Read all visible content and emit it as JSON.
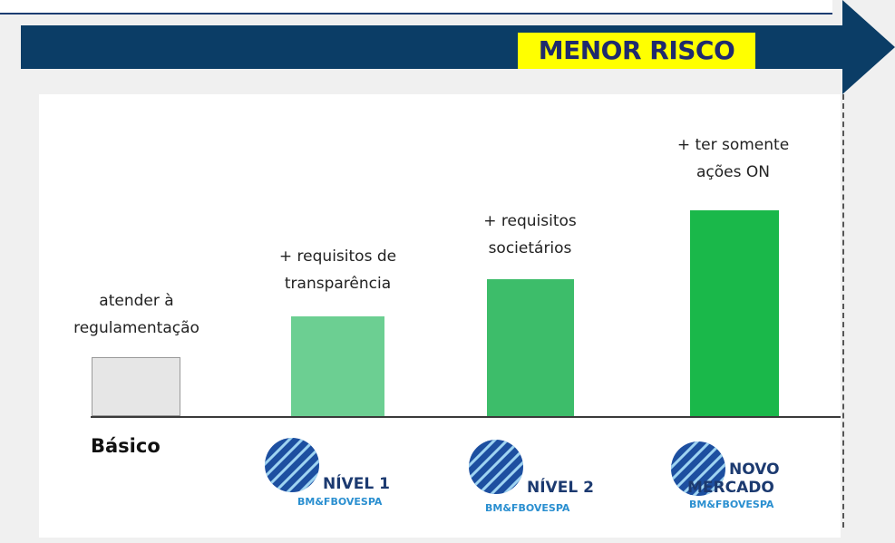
{
  "header": {
    "arrow_label": "MENOR RISCO",
    "arrow_color": "#0b3d66",
    "label_bg": "#ffff00",
    "label_color": "#1f2a6e"
  },
  "tiers": [
    {
      "id": "basico",
      "name": "Básico",
      "note": [
        "atender à",
        "regulamentação"
      ],
      "color": "#e6e6e6",
      "level": 1
    },
    {
      "id": "nivel1",
      "name": "NÍVEL 1",
      "exchange": "BM&FBOVESPA",
      "note": [
        "+ requisitos de",
        "transparência"
      ],
      "color": "#6ccf92",
      "level": 2
    },
    {
      "id": "nivel2",
      "name": "NÍVEL 2",
      "exchange": "BM&FBOVESPA",
      "note": [
        "+ requisitos",
        "societários"
      ],
      "color": "#3dbd6a",
      "level": 3
    },
    {
      "id": "novo_mercado",
      "name": [
        "NOVO",
        "MERCADO"
      ],
      "exchange": "BM&FBOVESPA",
      "note": [
        "+ ter somente",
        "ações ON"
      ],
      "color": "#1ab84a",
      "level": 4
    }
  ]
}
